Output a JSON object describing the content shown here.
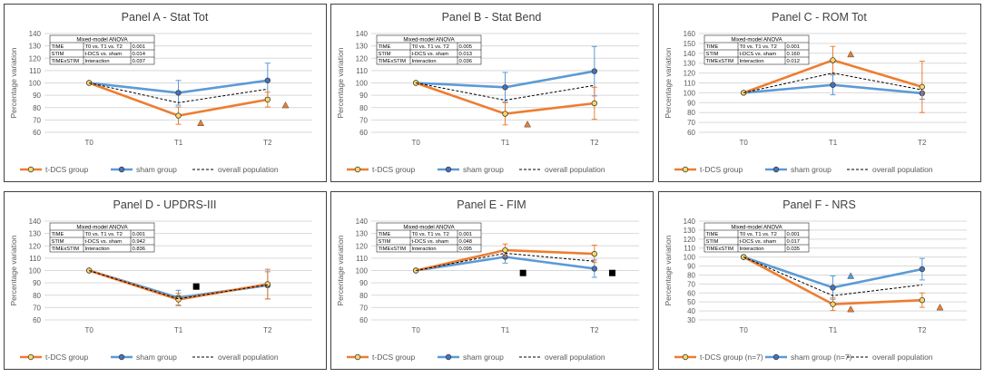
{
  "colors": {
    "tdcs": "#ED7D31",
    "sham": "#5B9BD5",
    "overall": "#000000",
    "tdcs_marker_fill": "#FFD966",
    "sham_marker_fill": "#4472C4",
    "grid": "#D9D9D9",
    "axis_text": "#595959",
    "frame": "#404040",
    "sig_orange_triangle": "#ED7D31",
    "sig_blue_triangle": "#5B9BD5",
    "sig_black_square": "#000000"
  },
  "chart_data": [
    {
      "id": "A",
      "type": "line",
      "title": "Panel A - Stat Tot",
      "ylabel": "Percentage variation",
      "xlabel": "",
      "categories": [
        "T0",
        "T1",
        "T2"
      ],
      "ylim": [
        60,
        140
      ],
      "ystep": 10,
      "grid": true,
      "legend_position": "bottom",
      "series": [
        {
          "key": "tdcs",
          "name": "t-DCS group",
          "values": [
            100,
            73.5,
            86.5
          ],
          "err": [
            0,
            7,
            6
          ]
        },
        {
          "key": "sham",
          "name": "sham group",
          "values": [
            100,
            92,
            102
          ],
          "err": [
            0,
            10,
            14
          ]
        },
        {
          "key": "overall",
          "name": "overall population",
          "values": [
            100,
            84,
            95
          ]
        }
      ],
      "markers": [
        {
          "shape": "triangle",
          "color": "orange",
          "x": 1.25,
          "y": 67.5
        },
        {
          "shape": "triangle",
          "color": "orange",
          "x": 2.2,
          "y": 82
        }
      ],
      "anova": {
        "header": "Mixed-model ANOVA",
        "rows": [
          [
            "TIME",
            "T0 vs. T1 vs. T2",
            "0.001"
          ],
          [
            "STIM",
            "t-DCS vs. sham",
            "0.014"
          ],
          [
            "TIMExSTIM",
            "Interaction",
            "0.037"
          ]
        ]
      }
    },
    {
      "id": "B",
      "type": "line",
      "title": "Panel B - Stat Bend",
      "ylabel": "Percentage variation",
      "xlabel": "",
      "categories": [
        "T0",
        "T1",
        "T2"
      ],
      "ylim": [
        60,
        140
      ],
      "ystep": 10,
      "grid": true,
      "legend_position": "bottom",
      "series": [
        {
          "key": "tdcs",
          "name": "t-DCS group",
          "values": [
            100,
            75,
            83.5
          ],
          "err": [
            0,
            9,
            13
          ]
        },
        {
          "key": "sham",
          "name": "sham group",
          "values": [
            100,
            96.5,
            109.5
          ],
          "err": [
            0,
            12,
            20
          ]
        },
        {
          "key": "overall",
          "name": "overall population",
          "values": [
            100,
            86,
            98
          ]
        }
      ],
      "markers": [
        {
          "shape": "triangle",
          "color": "orange",
          "x": 1.25,
          "y": 66.5
        }
      ],
      "anova": {
        "header": "Mixed-model ANOVA",
        "rows": [
          [
            "TIME",
            "T0 vs. T1 vs. T2",
            "0.005"
          ],
          [
            "STIM",
            "t-DCS vs. sham",
            "0.013"
          ],
          [
            "TIMExSTIM",
            "Interaction",
            "0.036"
          ]
        ]
      }
    },
    {
      "id": "C",
      "type": "line",
      "title": "Panel C - ROM Tot",
      "ylabel": "Percentage variation",
      "xlabel": "",
      "categories": [
        "T0",
        "T1",
        "T2"
      ],
      "ylim": [
        60,
        160
      ],
      "ystep": 10,
      "grid": true,
      "legend_position": "bottom",
      "series": [
        {
          "key": "tdcs",
          "name": "t-DCS group",
          "values": [
            100,
            133,
            106
          ],
          "err": [
            0,
            14,
            26
          ]
        },
        {
          "key": "sham",
          "name": "sham group",
          "values": [
            100,
            108,
            99.5
          ],
          "err": [
            0,
            10,
            6
          ]
        },
        {
          "key": "overall",
          "name": "overall population",
          "values": [
            100,
            120,
            103
          ]
        }
      ],
      "markers": [
        {
          "shape": "triangle",
          "color": "orange",
          "x": 1.2,
          "y": 139
        }
      ],
      "anova": {
        "header": "Mixed-model ANOVA",
        "rows": [
          [
            "TIME",
            "T0 vs. T1 vs. T2",
            "0.001"
          ],
          [
            "STIM",
            "t-DCS vs. sham",
            "0.160"
          ],
          [
            "TIMExSTIM",
            "Interaction",
            "0.012"
          ]
        ]
      }
    },
    {
      "id": "D",
      "type": "line",
      "title": "Panel D - UPDRS-III",
      "ylabel": "Percentage variation",
      "xlabel": "",
      "categories": [
        "T0",
        "T1",
        "T2"
      ],
      "ylim": [
        60,
        140
      ],
      "ystep": 10,
      "grid": true,
      "legend_position": "bottom",
      "series": [
        {
          "key": "tdcs",
          "name": "t-DCS group",
          "values": [
            100,
            76.5,
            89
          ],
          "err": [
            0,
            5,
            12
          ]
        },
        {
          "key": "sham",
          "name": "sham group",
          "values": [
            100,
            78,
            88
          ],
          "err": [
            0,
            6,
            11
          ]
        },
        {
          "key": "overall",
          "name": "overall population",
          "values": [
            100,
            77,
            88.5
          ]
        }
      ],
      "markers": [
        {
          "shape": "square",
          "color": "black",
          "x": 1.2,
          "y": 87
        }
      ],
      "anova": {
        "header": "Mixed-model ANOVA",
        "rows": [
          [
            "TIME",
            "T0 vs. T1 vs. T2",
            "0.001"
          ],
          [
            "STIM",
            "t-DCS vs. sham",
            "0.942"
          ],
          [
            "TIMExSTIM",
            "Interaction",
            "0.836"
          ]
        ]
      }
    },
    {
      "id": "E",
      "type": "line",
      "title": "Panel E - FIM",
      "ylabel": "Percentage variation",
      "xlabel": "",
      "categories": [
        "T0",
        "T1",
        "T2"
      ],
      "ylim": [
        60,
        140
      ],
      "ystep": 10,
      "grid": true,
      "legend_position": "bottom",
      "series": [
        {
          "key": "tdcs",
          "name": "t-DCS group",
          "values": [
            100,
            116.5,
            113.5
          ],
          "err": [
            0,
            5,
            7
          ]
        },
        {
          "key": "sham",
          "name": "sham group",
          "values": [
            100,
            111,
            101.5
          ],
          "err": [
            0,
            5,
            7
          ]
        },
        {
          "key": "overall",
          "name": "overall population",
          "values": [
            100,
            114,
            107.5
          ]
        }
      ],
      "markers": [
        {
          "shape": "square",
          "color": "black",
          "x": 1.2,
          "y": 98
        },
        {
          "shape": "square",
          "color": "black",
          "x": 2.2,
          "y": 98
        }
      ],
      "anova": {
        "header": "Mixed-model ANOVA",
        "rows": [
          [
            "TIME",
            "T0 vs. T1 vs. T2",
            "0.001"
          ],
          [
            "STIM",
            "t-DCS vs. sham",
            "0.048"
          ],
          [
            "TIMExSTIM",
            "Interaction",
            "0.095"
          ]
        ]
      }
    },
    {
      "id": "F",
      "type": "line",
      "title": "Panel F - NRS",
      "ylabel": "Percentage variation",
      "xlabel": "",
      "categories": [
        "T0",
        "T1",
        "T2"
      ],
      "ylim": [
        30,
        140
      ],
      "ystep": 10,
      "grid": true,
      "legend_position": "bottom",
      "series": [
        {
          "key": "tdcs",
          "name": "t-DCS group (n=7)",
          "values": [
            100,
            47.5,
            52
          ],
          "err": [
            0,
            7,
            8
          ]
        },
        {
          "key": "sham",
          "name": "sham group (n=7)",
          "values": [
            100,
            66,
            86.5
          ],
          "err": [
            0,
            13,
            12
          ]
        },
        {
          "key": "overall",
          "name": "overall population",
          "values": [
            100,
            57,
            69
          ]
        }
      ],
      "markers": [
        {
          "shape": "triangle",
          "color": "blue",
          "x": 1.2,
          "y": 79
        },
        {
          "shape": "triangle",
          "color": "orange",
          "x": 1.2,
          "y": 42
        },
        {
          "shape": "triangle",
          "color": "orange",
          "x": 2.2,
          "y": 44
        }
      ],
      "anova": {
        "header": "Mixed-model ANOVA",
        "rows": [
          [
            "TIME",
            "T0 vs. T1 vs. T2",
            "0.001"
          ],
          [
            "STIM",
            "t-DCS vs. sham",
            "0.017"
          ],
          [
            "TIMExSTIM",
            "Interaction",
            "0.035"
          ]
        ]
      }
    }
  ]
}
